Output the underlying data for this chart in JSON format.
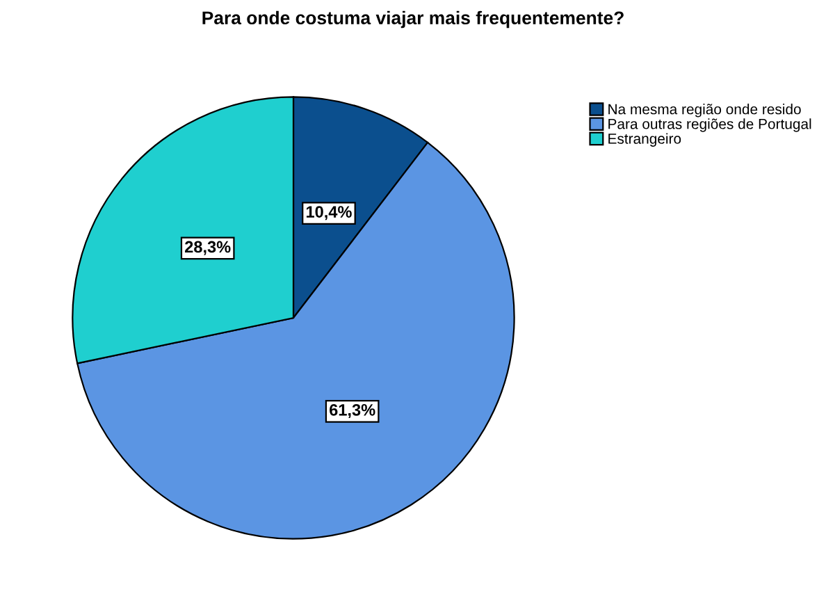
{
  "chart_data": {
    "type": "pie",
    "title": "Para onde costuma viajar mais frequentemente?",
    "categories": [
      "Na mesma região onde resido",
      "Para outras regiões de Portugal",
      "Estrangeiro"
    ],
    "values": [
      10.4,
      61.3,
      28.3
    ],
    "colors": [
      "#0b4f8e",
      "#5b95e3",
      "#1fcfcf"
    ],
    "value_labels": [
      "10,4%",
      "61,3%",
      "28,3%"
    ],
    "legend": "top right"
  }
}
